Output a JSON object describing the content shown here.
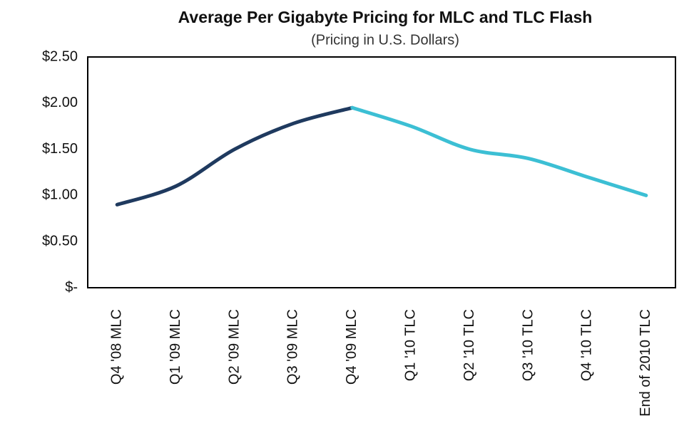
{
  "chart_data": {
    "type": "line",
    "title": "Average Per Gigabyte Pricing for MLC and TLC Flash",
    "subtitle": "(Pricing in U.S. Dollars)",
    "categories": [
      "Q4 '08 MLC",
      "Q1 '09 MLC",
      "Q2 '09 MLC",
      "Q3 '09 MLC",
      "Q4 '09 MLC",
      "Q1 '10 TLC",
      "Q2 '10 TLC",
      "Q3 '10 TLC",
      "Q4 '10 TLC",
      "End of 2010 TLC"
    ],
    "series": [
      {
        "color": "#1f3a5f",
        "values": [
          0.9,
          1.1,
          1.5,
          1.78,
          1.95,
          null,
          null,
          null,
          null,
          null
        ]
      },
      {
        "color": "#3cbfd4",
        "values": [
          null,
          null,
          null,
          null,
          1.95,
          1.75,
          1.5,
          1.4,
          1.2,
          1.0
        ]
      }
    ],
    "ylim": [
      0,
      2.5
    ],
    "yticks": [
      {
        "value": 0,
        "label": "$-"
      },
      {
        "value": 0.5,
        "label": "$0.50"
      },
      {
        "value": 1,
        "label": "$1.00"
      },
      {
        "value": 1.5,
        "label": "$1.50"
      },
      {
        "value": 2,
        "label": "$2.00"
      },
      {
        "value": 2.5,
        "label": "$2.50"
      }
    ],
    "grid": false
  }
}
